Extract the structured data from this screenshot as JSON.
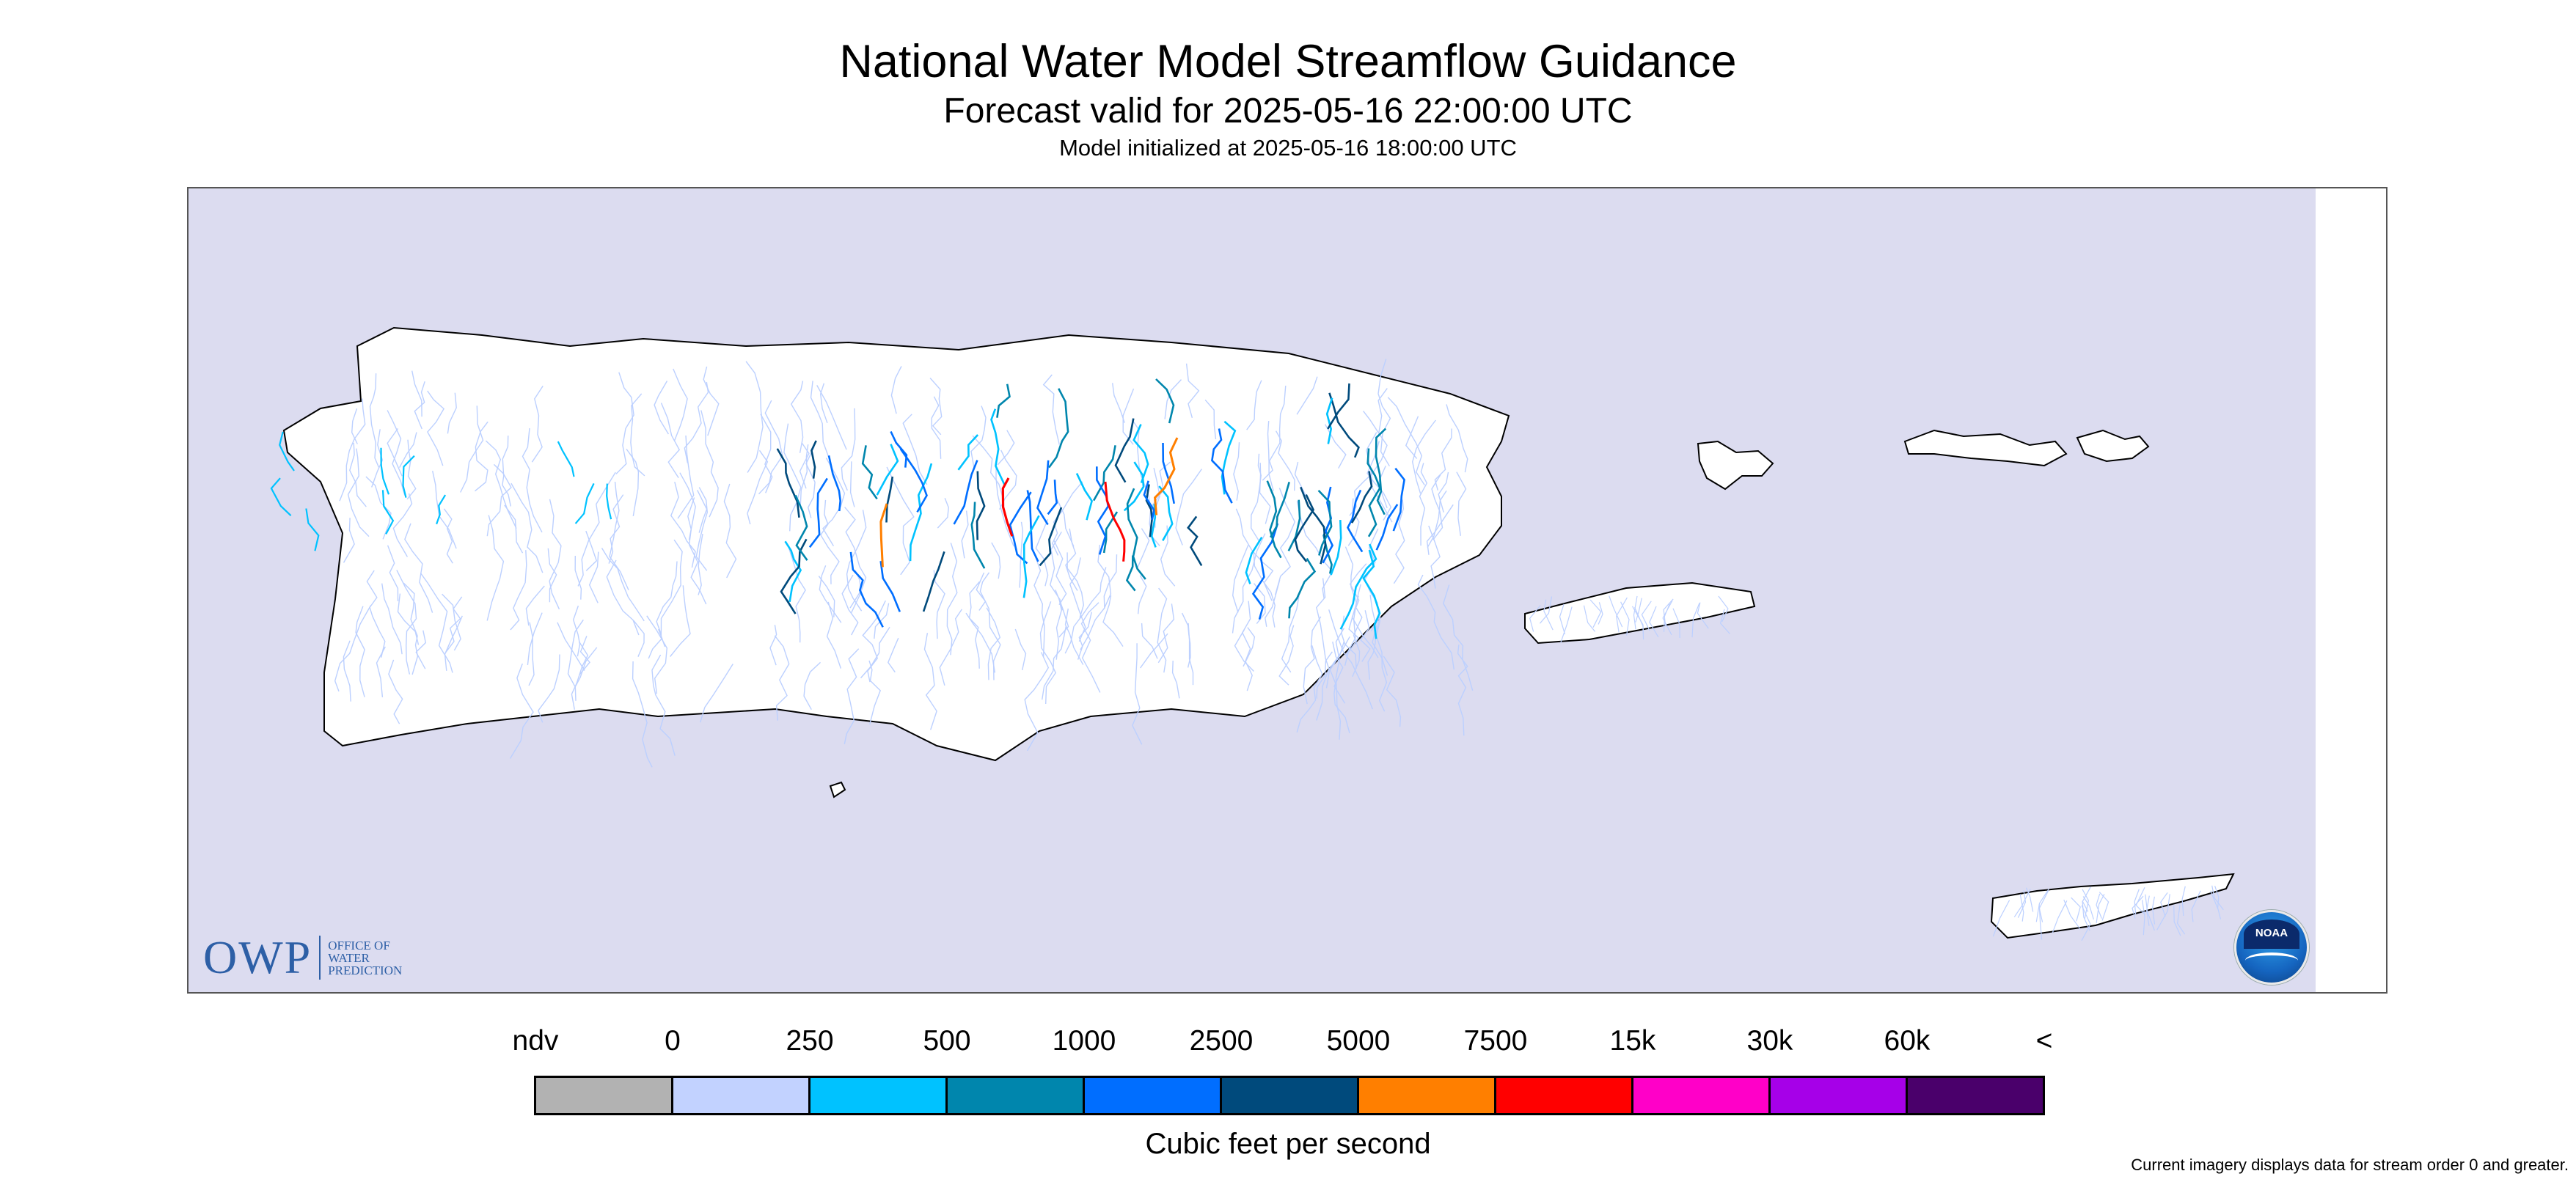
{
  "header": {
    "title": "National Water Model Streamflow Guidance",
    "subtitle": "Forecast valid for 2025-05-16 22:00:00 UTC",
    "init_line": "Model initialized at 2025-05-16 18:00:00 UTC"
  },
  "map": {
    "ocean_color": "#dcdcf0",
    "land_color": "#ffffff",
    "coastline_color": "#000000",
    "stream_base_color": "#bcd0ff",
    "regions": [
      "Puerto Rico",
      "Culebra",
      "Vieques",
      "St. Thomas",
      "St. John",
      "St. Croix"
    ]
  },
  "logos": {
    "owp": {
      "main": "OWP",
      "sub": "OFFICE OF\nWATER\nPREDICTION",
      "icon": "owp-logo"
    },
    "noaa": {
      "text": "NOAA",
      "icon": "noaa-logo"
    }
  },
  "legend": {
    "labels": [
      "ndv",
      "0",
      "250",
      "500",
      "1000",
      "2500",
      "5000",
      "7500",
      "15k",
      "30k",
      "60k",
      "<"
    ],
    "colors": [
      "#b2b2b2",
      "#c2d2ff",
      "#00c2ff",
      "#0086ad",
      "#006eff",
      "#004a7c",
      "#ff7f00",
      "#ff0000",
      "#ff00c8",
      "#a600e8",
      "#4a006b"
    ],
    "unit": "Cubic feet per second"
  },
  "footnote": "Current imagery displays data for stream order 0 and greater."
}
